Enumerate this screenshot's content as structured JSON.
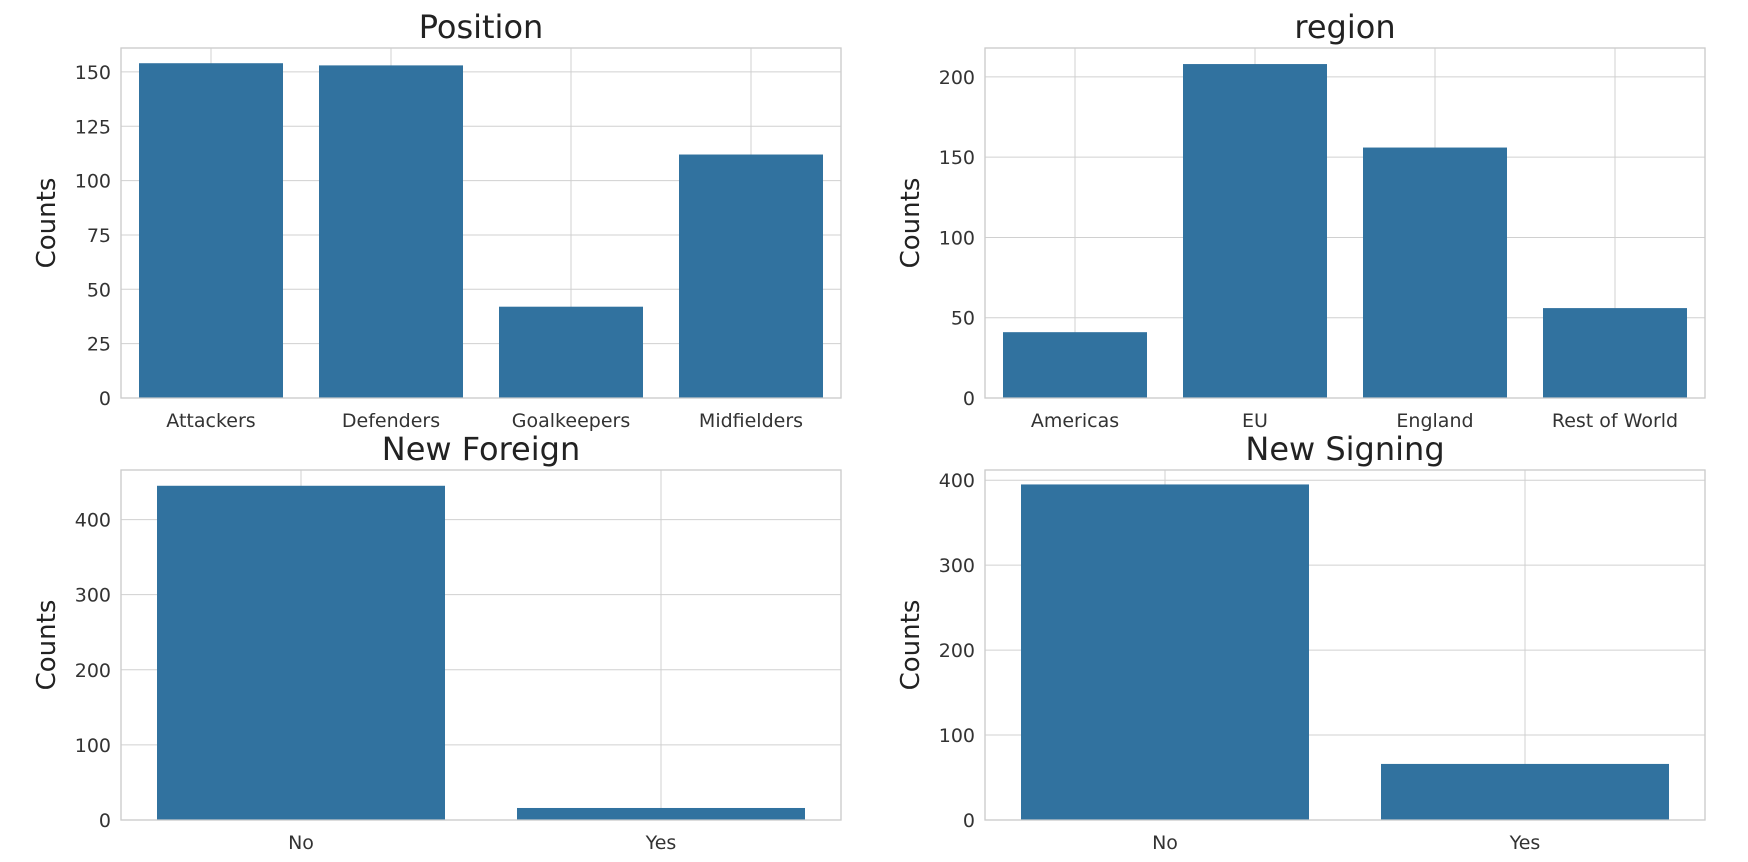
{
  "chart_data": [
    {
      "type": "bar",
      "title": "Position",
      "xlabel": "",
      "ylabel": "Counts",
      "categories": [
        "Attackers",
        "Defenders",
        "Goalkeepers",
        "Midfielders"
      ],
      "values": [
        154,
        153,
        42,
        112
      ],
      "ylim": [
        0,
        161
      ],
      "yticks": [
        0,
        25,
        50,
        75,
        100,
        125,
        150
      ],
      "grid": true,
      "bar_color": "#31729f"
    },
    {
      "type": "bar",
      "title": "region",
      "xlabel": "",
      "ylabel": "Counts",
      "categories": [
        "Americas",
        "EU",
        "England",
        "Rest of World"
      ],
      "values": [
        41,
        208,
        156,
        56
      ],
      "ylim": [
        0,
        218
      ],
      "yticks": [
        0,
        50,
        100,
        150,
        200
      ],
      "grid": true,
      "bar_color": "#31729f"
    },
    {
      "type": "bar",
      "title": "New Foreign",
      "xlabel": "",
      "ylabel": "Counts",
      "categories": [
        "No",
        "Yes"
      ],
      "values": [
        445,
        16
      ],
      "ylim": [
        0,
        466
      ],
      "yticks": [
        0,
        100,
        200,
        300,
        400
      ],
      "grid": true,
      "bar_color": "#31729f"
    },
    {
      "type": "bar",
      "title": "New Signing",
      "xlabel": "",
      "ylabel": "Counts",
      "categories": [
        "No",
        "Yes"
      ],
      "values": [
        395,
        66
      ],
      "ylim": [
        0,
        412
      ],
      "yticks": [
        0,
        100,
        200,
        300,
        400
      ],
      "grid": true,
      "bar_color": "#31729f"
    }
  ]
}
